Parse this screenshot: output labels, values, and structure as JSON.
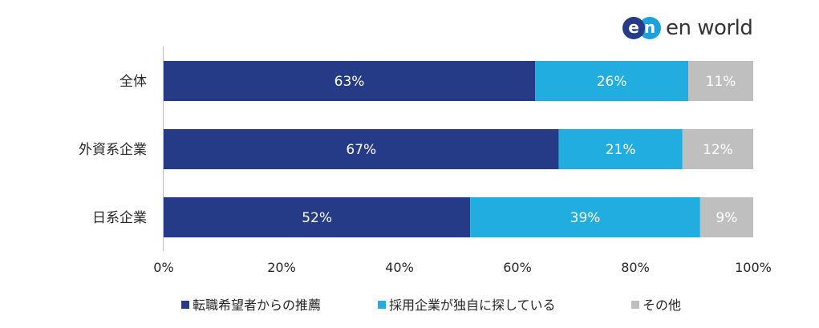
{
  "logo": {
    "mark_e": "e",
    "mark_n": "n",
    "text": "en world"
  },
  "chart_data": {
    "type": "bar",
    "orientation": "horizontal",
    "stacked": true,
    "categories": [
      "全体",
      "外資系企業",
      "日系企業"
    ],
    "series": [
      {
        "name": "転職希望者からの推薦",
        "values": [
          63,
          67,
          52
        ],
        "color": "#253b87"
      },
      {
        "name": "採用企業が独自に探している",
        "values": [
          26,
          21,
          39
        ],
        "color": "#22ade1"
      },
      {
        "name": "その他",
        "values": [
          11,
          12,
          9
        ],
        "color": "#bfbfbf"
      }
    ],
    "data_label_suffix": "%",
    "xlim": [
      0,
      100
    ],
    "xticks": [
      "0%",
      "20%",
      "40%",
      "60%",
      "80%",
      "100%"
    ],
    "grid": false,
    "legend_position": "bottom"
  }
}
